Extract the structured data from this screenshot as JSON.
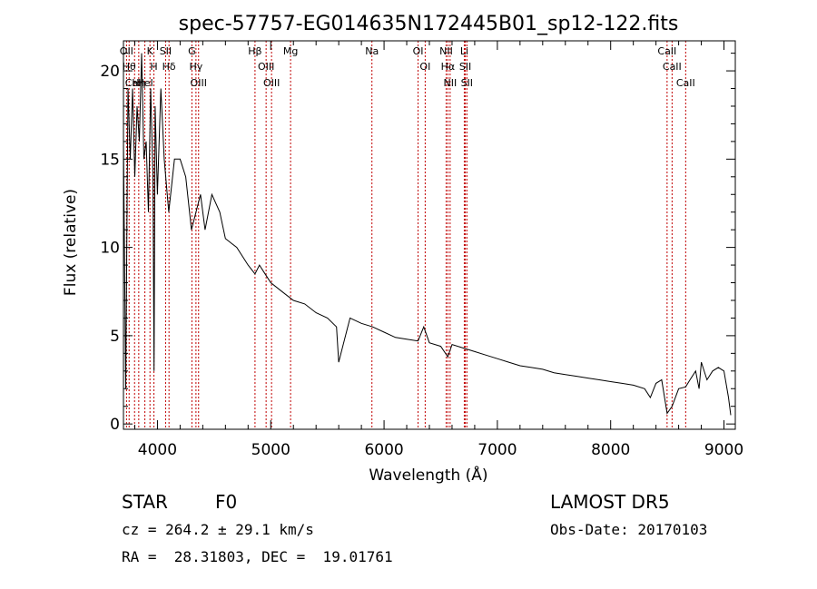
{
  "chart_data": {
    "type": "line",
    "title": "spec-57757-EG014635N172445B01_sp12-122.fits",
    "xlabel": "Wavelength (Å)",
    "ylabel": "Flux (relative)",
    "xlim": [
      3700,
      9100
    ],
    "ylim": [
      -0.3,
      21.7
    ],
    "xticks": [
      4000,
      5000,
      6000,
      7000,
      8000,
      9000
    ],
    "yticks": [
      0,
      5,
      10,
      15,
      20
    ],
    "grid": false,
    "series": [
      {
        "x": [
          3700,
          3720,
          3740,
          3760,
          3780,
          3800,
          3820,
          3840,
          3860,
          3880,
          3900,
          3920,
          3940,
          3960,
          3970,
          3980,
          4000,
          4030,
          4060,
          4100,
          4150,
          4200,
          4250,
          4300,
          4340,
          4380,
          4420,
          4480,
          4550,
          4600,
          4700,
          4800,
          4861,
          4900,
          4950,
          5000,
          5100,
          5200,
          5300,
          5400,
          5500,
          5580,
          5600,
          5700,
          5800,
          5900,
          6000,
          6100,
          6200,
          6300,
          6350,
          6400,
          6500,
          6563,
          6600,
          6700,
          6800,
          6900,
          7000,
          7100,
          7200,
          7300,
          7400,
          7500,
          7600,
          7700,
          7800,
          7900,
          8000,
          8100,
          8200,
          8300,
          8350,
          8400,
          8450,
          8498,
          8542,
          8600,
          8662,
          8700,
          8750,
          8780,
          8800,
          8850,
          8900,
          8950,
          9000,
          9040,
          9060
        ],
        "y": [
          16,
          2,
          19,
          15,
          19,
          14,
          18,
          16,
          21,
          15,
          16,
          12,
          19,
          14,
          3,
          18,
          13,
          19,
          15,
          12,
          15,
          15,
          14,
          11,
          12,
          13,
          11,
          13,
          12,
          10.5,
          10,
          9,
          8.5,
          9,
          8.5,
          8,
          7.5,
          7,
          6.8,
          6.3,
          6,
          5.5,
          3.5,
          6,
          5.7,
          5.5,
          5.2,
          4.9,
          4.8,
          4.7,
          5.5,
          4.6,
          4.4,
          3.8,
          4.5,
          4.3,
          4.1,
          3.9,
          3.7,
          3.5,
          3.3,
          3.2,
          3.1,
          2.9,
          2.8,
          2.7,
          2.6,
          2.5,
          2.4,
          2.3,
          2.2,
          2.0,
          1.5,
          2.3,
          2.5,
          0.6,
          1.0,
          2.0,
          2.1,
          2.5,
          3.0,
          2.0,
          3.5,
          2.5,
          3.0,
          3.2,
          3.0,
          1.5,
          0.5
        ]
      }
    ],
    "lines": [
      {
        "x": 3727,
        "labels": [
          "OII"
        ]
      },
      {
        "x": 3750,
        "labels": [
          "Hθ"
        ]
      },
      {
        "x": 3798,
        "labels": [
          "CaII"
        ]
      },
      {
        "x": 3835,
        "labels": [
          "Hη"
        ]
      },
      {
        "x": 3889,
        "labels": [
          "HeI"
        ]
      },
      {
        "x": 3934,
        "labels": [
          "K"
        ]
      },
      {
        "x": 3969,
        "labels": [
          "H"
        ]
      },
      {
        "x": 4072,
        "labels": [
          "SII"
        ]
      },
      {
        "x": 4102,
        "labels": [
          "Hδ"
        ]
      },
      {
        "x": 4304,
        "labels": [
          "G"
        ]
      },
      {
        "x": 4340,
        "labels": [
          "Hγ"
        ]
      },
      {
        "x": 4363,
        "labels": [
          "OIII"
        ]
      },
      {
        "x": 4861,
        "labels": [
          "Hβ"
        ]
      },
      {
        "x": 4959,
        "labels": [
          "OIII"
        ]
      },
      {
        "x": 5007,
        "labels": [
          "OIII"
        ]
      },
      {
        "x": 5175,
        "labels": [
          "Mg"
        ]
      },
      {
        "x": 5893,
        "labels": [
          "Na"
        ]
      },
      {
        "x": 6300,
        "labels": [
          "OI"
        ]
      },
      {
        "x": 6363,
        "labels": [
          "OI"
        ]
      },
      {
        "x": 6548,
        "labels": [
          "NII"
        ]
      },
      {
        "x": 6563,
        "labels": [
          "Hα"
        ]
      },
      {
        "x": 6583,
        "labels": [
          "NII"
        ]
      },
      {
        "x": 6708,
        "labels": [
          "Li"
        ]
      },
      {
        "x": 6717,
        "labels": [
          "SII"
        ]
      },
      {
        "x": 6731,
        "labels": [
          "SII"
        ]
      },
      {
        "x": 8498,
        "labels": [
          "CaII"
        ]
      },
      {
        "x": 8542,
        "labels": [
          "CaII"
        ]
      },
      {
        "x": 8662,
        "labels": [
          "CaII"
        ]
      }
    ]
  },
  "info": {
    "class": "STAR",
    "subclass": "F0",
    "survey": "LAMOST DR5",
    "cz": "cz = 264.2 ± 29.1 km/s",
    "obs_date": "Obs-Date: 20170103",
    "radec": "RA =  28.31803, DEC =  19.01761"
  },
  "colors": {
    "spectrum": "#000000",
    "line_marker": "#c00000"
  }
}
